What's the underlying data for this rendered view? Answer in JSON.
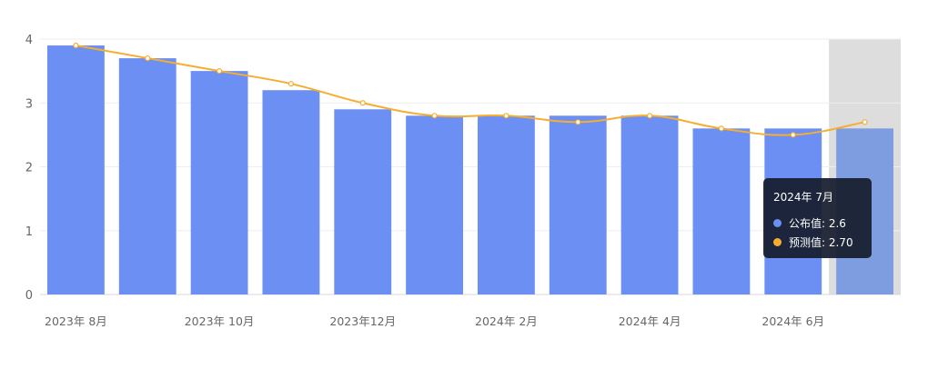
{
  "chart_data": {
    "type": "bar",
    "tick_labels": [
      "2023年 8月",
      "2023年 10月",
      "2023年12月",
      "2024年 2月",
      "2024年 4月",
      "2024年 6月"
    ],
    "series": [
      {
        "name": "公布值",
        "type": "bar",
        "values": [
          3.9,
          3.7,
          3.5,
          3.2,
          2.9,
          2.8,
          2.8,
          2.8,
          2.8,
          2.6,
          2.6,
          2.6
        ]
      },
      {
        "name": "预测值",
        "type": "line",
        "values": [
          3.9,
          3.7,
          3.5,
          3.3,
          3.0,
          2.8,
          2.8,
          2.7,
          2.8,
          2.6,
          2.5,
          2.7
        ]
      }
    ],
    "ylim": [
      0,
      4
    ],
    "yticks": [
      "0",
      "1",
      "2",
      "3",
      "4"
    ],
    "grid": true,
    "highlighted_index": 11,
    "colors": {
      "bar": "#6b8ff3",
      "bar_highlight": "#7e9ce0",
      "line": "#f5ae2f",
      "highlight_band": "#dddddd"
    }
  },
  "tooltip": {
    "title": "2024年 7月",
    "rows": [
      {
        "label": "公布值: 2.6",
        "color": "#6b8ff3"
      },
      {
        "label": "预测值: 2.70",
        "color": "#f5ae2f"
      }
    ]
  }
}
